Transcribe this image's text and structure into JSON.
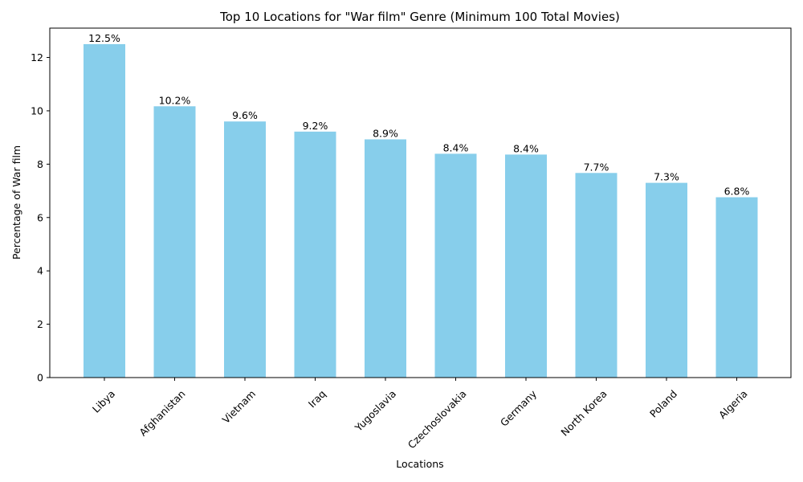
{
  "chart_data": {
    "type": "bar",
    "title": "Top 10 Locations for \"War film\" Genre (Minimum 100 Total Movies)",
    "xlabel": "Locations",
    "ylabel": "Percentage of War film",
    "categories": [
      "Libya",
      "Afghanistan",
      "Vietnam",
      "Iraq",
      "Yugoslavia",
      "Czechoslovakia",
      "Germany",
      "North Korea",
      "Poland",
      "Algeria"
    ],
    "values": [
      12.5,
      10.17,
      9.6,
      9.22,
      8.93,
      8.39,
      8.36,
      7.67,
      7.3,
      6.76
    ],
    "value_labels": [
      "12.5%",
      "10.2%",
      "9.6%",
      "9.2%",
      "8.9%",
      "8.4%",
      "8.4%",
      "7.7%",
      "7.3%",
      "6.8%"
    ],
    "ylim": [
      0,
      13.1
    ],
    "yticks": [
      0,
      2,
      4,
      6,
      8,
      10,
      12
    ],
    "bar_color": "#87ceeb",
    "grid": false,
    "legend": false,
    "xtick_rotation": 45
  }
}
